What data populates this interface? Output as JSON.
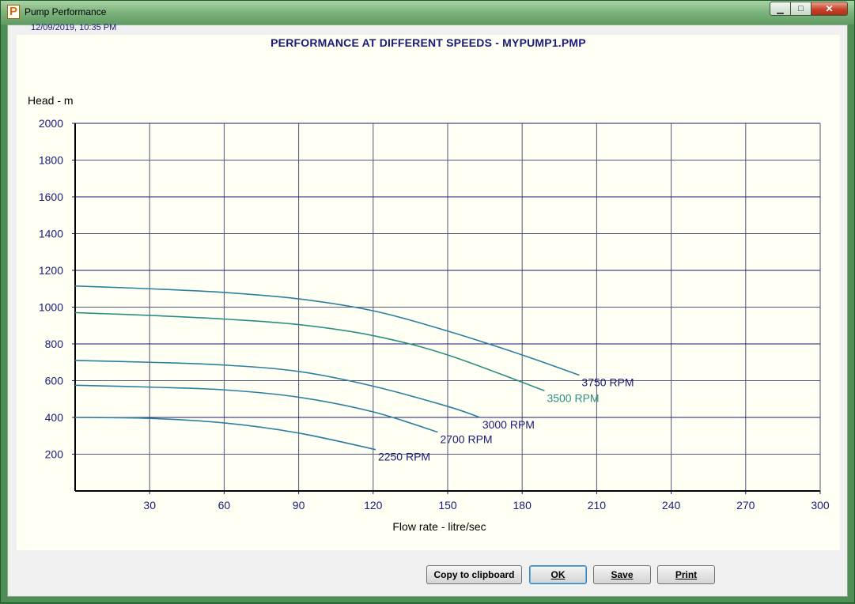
{
  "window": {
    "title": "Pump Performance",
    "icon_letter": "P",
    "controls": {
      "minimize": "▁",
      "maximize": "□",
      "close": "✕"
    }
  },
  "header": {
    "timestamp": "12/09/2019,  10:35 PM",
    "title": "PERFORMANCE AT DIFFERENT SPEEDS -  MYPUMP1.PMP"
  },
  "buttons": {
    "copy_label": "Copy to clipboard",
    "ok_label": "OK",
    "save_label": "Save",
    "print_label": "Print"
  },
  "chart_data": {
    "type": "line",
    "title": "PERFORMANCE AT DIFFERENT SPEEDS -  MYPUMP1.PMP",
    "xlabel": "Flow rate - litre/sec",
    "ylabel": "Head - m",
    "xlim": [
      0,
      300
    ],
    "ylim": [
      0,
      2000
    ],
    "xticks": [
      30,
      60,
      90,
      120,
      150,
      180,
      210,
      240,
      270,
      300
    ],
    "yticks": [
      200,
      400,
      600,
      800,
      1000,
      1200,
      1400,
      1600,
      1800,
      2000
    ],
    "grid": true,
    "axis_color": "#1a1a7a",
    "grid_color": "#555577",
    "series": [
      {
        "name": "3750 RPM",
        "color": "#2a7fa0",
        "label_color": "#1a1a7a",
        "x": [
          0,
          30,
          60,
          90,
          120,
          150,
          180,
          203
        ],
        "y": [
          1115,
          1100,
          1080,
          1045,
          980,
          870,
          740,
          630
        ]
      },
      {
        "name": "3500 RPM",
        "color": "#2a8f82",
        "label_color": "#2a8f82",
        "x": [
          0,
          30,
          60,
          90,
          120,
          150,
          189
        ],
        "y": [
          970,
          955,
          935,
          905,
          845,
          740,
          545
        ]
      },
      {
        "name": "3000 RPM",
        "color": "#2a7fa0",
        "label_color": "#1a1a7a",
        "x": [
          0,
          30,
          60,
          90,
          120,
          150,
          163
        ],
        "y": [
          710,
          700,
          685,
          650,
          570,
          460,
          400
        ]
      },
      {
        "name": "2700 RPM",
        "color": "#2a7fa0",
        "label_color": "#1a1a7a",
        "x": [
          0,
          30,
          60,
          90,
          120,
          146
        ],
        "y": [
          575,
          565,
          550,
          510,
          430,
          320
        ]
      },
      {
        "name": "2250 RPM",
        "color": "#2a7fa0",
        "label_color": "#1a1a7a",
        "x": [
          0,
          30,
          60,
          90,
          121
        ],
        "y": [
          400,
          395,
          370,
          315,
          225
        ]
      }
    ]
  }
}
